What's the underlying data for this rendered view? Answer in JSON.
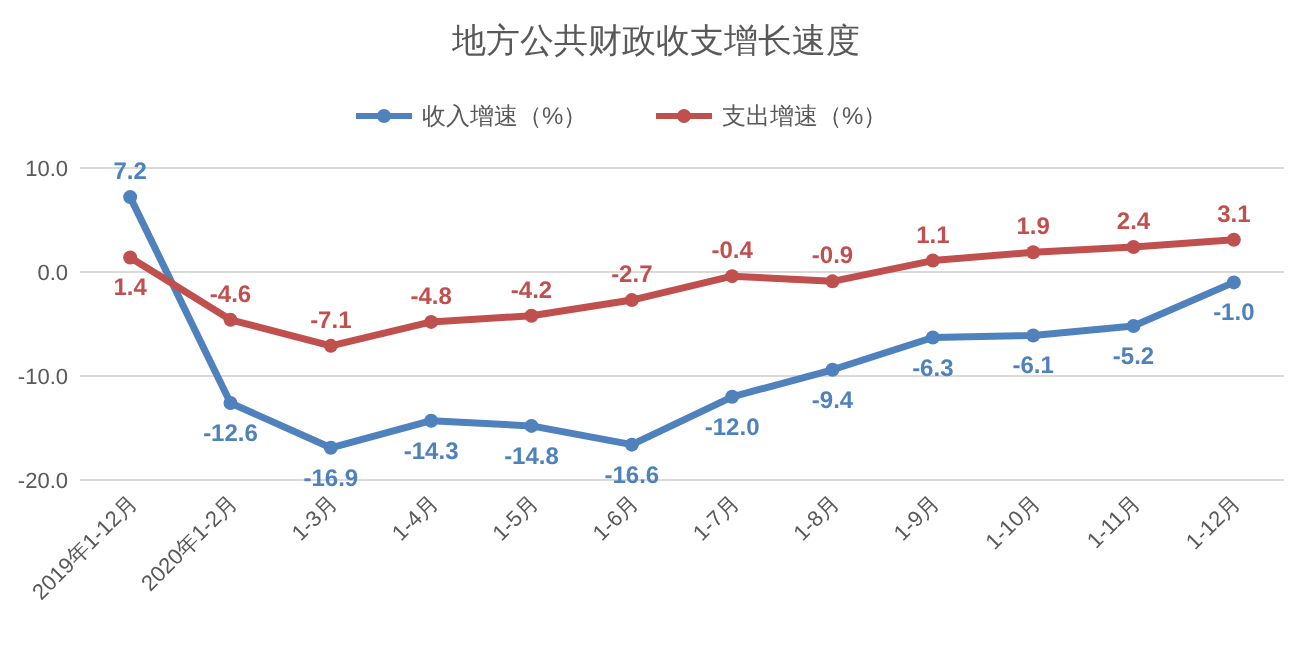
{
  "chart_data": {
    "type": "line",
    "title": "地方公共财政收支增长速度",
    "categories": [
      "2019年1-12月",
      "2020年1-2月",
      "1-3月",
      "1-4月",
      "1-5月",
      "1-6月",
      "1-7月",
      "1-8月",
      "1-9月",
      "1-10月",
      "1-11月",
      "1-12月"
    ],
    "series": [
      {
        "name": "收入增速（%）",
        "color": "#4f81bd",
        "values": [
          7.2,
          -12.6,
          -16.9,
          -14.3,
          -14.8,
          -16.6,
          -12.0,
          -9.4,
          -6.3,
          -6.1,
          -5.2,
          -1.0
        ],
        "value_labels": [
          "7.2",
          "-12.6",
          "-16.9",
          "-14.3",
          "-14.8",
          "-16.6",
          "-12.0",
          "-9.4",
          "-6.3",
          "-6.1",
          "-5.2",
          "-1.0"
        ]
      },
      {
        "name": "支出增速（%）",
        "color": "#c0504d",
        "values": [
          1.4,
          -4.6,
          -7.1,
          -4.8,
          -4.2,
          -2.7,
          -0.4,
          -0.9,
          1.1,
          1.9,
          2.4,
          3.1
        ],
        "value_labels": [
          "1.4",
          "-4.6",
          "-7.1",
          "-4.8",
          "-4.2",
          "-2.7",
          "-0.4",
          "-0.9",
          "1.1",
          "1.9",
          "2.4",
          "3.1"
        ]
      }
    ],
    "ylim": [
      -20,
      10
    ],
    "yticks": [
      {
        "value": -20,
        "label": "-20.0"
      },
      {
        "value": -10,
        "label": "-10.0"
      },
      {
        "value": 0,
        "label": "0.0"
      },
      {
        "value": 10,
        "label": "10.0"
      }
    ],
    "grid": "y",
    "legend": "top",
    "marker": "circle",
    "line_style": "solid"
  }
}
